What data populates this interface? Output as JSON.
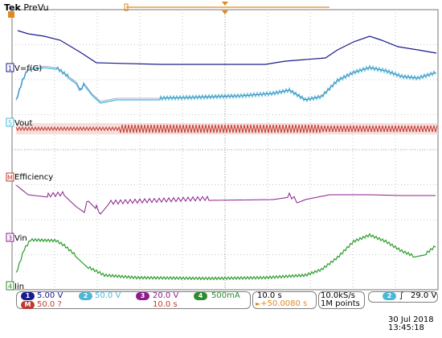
{
  "header": {
    "brand": "Tek",
    "mode": "PreVu"
  },
  "colors": {
    "ch1": "#1a1a8c",
    "ch2": "#4db8d6",
    "ch3": "#8b1e8b",
    "ch4": "#2e8b2e",
    "math": "#c0392b",
    "ref_green": "#2a9d2a",
    "trigger_orange": "#e08a1e",
    "grid": "#b8b8b8",
    "frame": "#666666"
  },
  "traces": [
    {
      "key": "ch1_top",
      "marker": "1",
      "label": "",
      "color": "#1a1a8c"
    },
    {
      "key": "ch2",
      "marker": "1",
      "label": "V=f(G)",
      "color": "#4db8d6"
    },
    {
      "key": "vout",
      "marker": "5",
      "label": "Vout",
      "color": "#c0392b"
    },
    {
      "key": "efficiency",
      "marker": "M",
      "label": "Efficiency",
      "color": "#8b1e8b"
    },
    {
      "key": "vin",
      "marker": "3",
      "label": "Vin",
      "color": "#8b1e8b"
    },
    {
      "key": "iin",
      "marker": "4",
      "label": "Iin",
      "color": "#2e8b2e"
    }
  ],
  "channels": [
    {
      "num": "1",
      "value": "5.00 V",
      "color": "#1a1a8c",
      "text_color": "#1a1a8c"
    },
    {
      "num": "2",
      "value": "50.0 V",
      "color": "#4db8d6",
      "text_color": "#4db8d6"
    },
    {
      "num": "3",
      "value": "20.0 V",
      "color": "#8b1e8b",
      "text_color": "#8b1e8b"
    },
    {
      "num": "4",
      "value": "500mA",
      "color": "#2e8b2e",
      "text_color": "#2e8b2e"
    }
  ],
  "math": {
    "num": "M",
    "value": "50.0 ?",
    "timebase": "10.0 s",
    "color": "#c0392b"
  },
  "horizontal": {
    "timebase": "10.0 s",
    "trigger_pos": "+50.0080 s"
  },
  "acquisition": {
    "sample_rate": "10.0kS/s",
    "record_length": "1M points"
  },
  "trigger": {
    "source": "2",
    "slope": "∫",
    "level": "29.0 V"
  },
  "datetime": {
    "date": "30 Jul  2018",
    "time": "13:45:18"
  }
}
